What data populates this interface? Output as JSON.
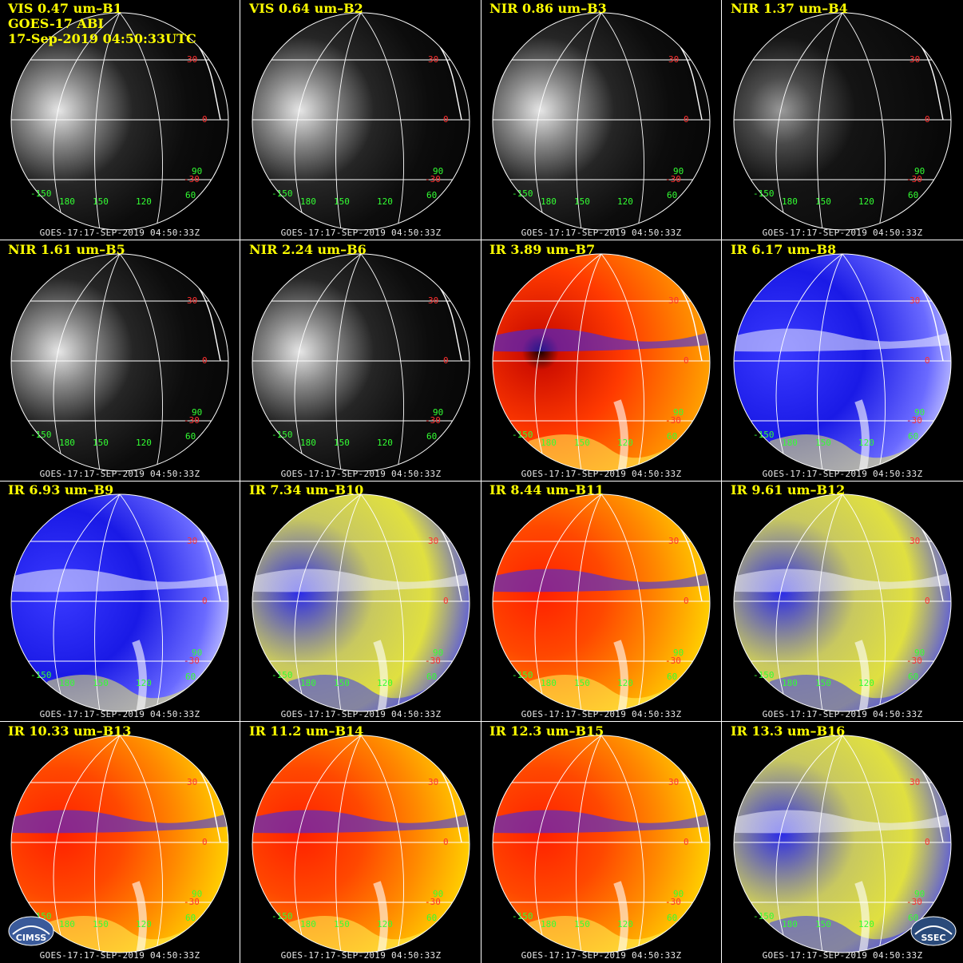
{
  "image": {
    "satellite_caption": "GOES-17 ABI",
    "scan_time_caption": "17-Sep-2019 04:50:33UTC",
    "footer_text": "GOES-17:17-SEP-2019 04:50:33Z",
    "lat_labels": [
      "30",
      "0",
      "-30"
    ],
    "lon_labels": [
      "-150",
      "180",
      "150",
      "120",
      "60",
      "90"
    ],
    "logos": {
      "left": "CIMSS",
      "right": "SSEC"
    },
    "colors": {
      "label_text": "#ffff00",
      "lat_label": "#ff3030",
      "lon_label": "#33ff33",
      "grid_lines": "#ffffff",
      "background": "#000000"
    }
  },
  "panels": [
    {
      "label": "VIS 0.47 um–B1",
      "style": "vis"
    },
    {
      "label": "VIS 0.64 um–B2",
      "style": "vis"
    },
    {
      "label": "NIR 0.86 um–B3",
      "style": "vis"
    },
    {
      "label": "NIR 1.37 um–B4",
      "style": "visdark"
    },
    {
      "label": "NIR 1.61 um–B5",
      "style": "vis"
    },
    {
      "label": "NIR 2.24 um–B6",
      "style": "vis"
    },
    {
      "label": "IR 3.89 um–B7",
      "style": "irhot"
    },
    {
      "label": "IR 6.17 um–B8",
      "style": "wv"
    },
    {
      "label": "IR 6.93 um–B9",
      "style": "wv"
    },
    {
      "label": "IR 7.34 um–B10",
      "style": "wvyellow"
    },
    {
      "label": "IR 8.44 um–B11",
      "style": "irwarm"
    },
    {
      "label": "IR 9.61 um–B12",
      "style": "wvyellow"
    },
    {
      "label": "IR 10.33 um–B13",
      "style": "irwarm"
    },
    {
      "label": "IR 11.2 um–B14",
      "style": "irwarm"
    },
    {
      "label": "IR 12.3 um–B15",
      "style": "irwarm"
    },
    {
      "label": "IR 13.3 um–B16",
      "style": "wvyellow"
    }
  ]
}
